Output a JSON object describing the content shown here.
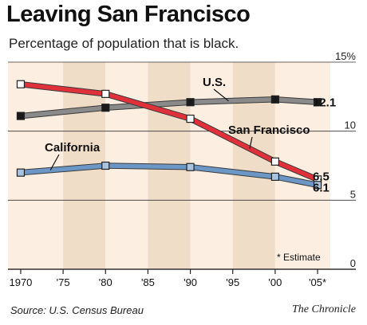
{
  "header": {
    "title": "Leaving San Francisco",
    "subtitle": "Percentage of population that is black."
  },
  "footer": {
    "source": "Source: U.S. Census Bureau",
    "credit": "The Chronicle"
  },
  "chart_data": {
    "type": "line",
    "x": [
      1970,
      1980,
      1990,
      2000,
      2005
    ],
    "x_ticks": [
      1970,
      1975,
      1980,
      1985,
      1990,
      1995,
      2000,
      2005
    ],
    "x_tick_labels": [
      "1970",
      "'75",
      "'80",
      "'85",
      "'90",
      "'95",
      "'00",
      "'05*"
    ],
    "y_ticks": [
      0,
      5,
      10,
      15
    ],
    "y_tick_labels": [
      "0",
      "5",
      "10",
      "15%"
    ],
    "ylim": [
      0,
      15
    ],
    "xlim": [
      1968.5,
      2006.5
    ],
    "grid": true,
    "annotation": "* Estimate",
    "series": [
      {
        "name": "U.S.",
        "values": [
          11.1,
          11.7,
          12.1,
          12.3,
          12.1
        ],
        "color": "#8a8a8a",
        "marker": "#1a1a1a",
        "end_label": "12.1"
      },
      {
        "name": "San Francisco",
        "values": [
          13.4,
          12.7,
          10.9,
          7.8,
          6.5
        ],
        "color": "#e0303a",
        "marker": "#ffffff",
        "end_label": "6.5"
      },
      {
        "name": "California",
        "values": [
          7.0,
          7.5,
          7.4,
          6.7,
          6.1
        ],
        "color": "#6b96c6",
        "marker": "#a8c4e0",
        "end_label": "6.1"
      }
    ],
    "colors": {
      "band_light": "#fdeee2",
      "band_dark": "#f0ddc8",
      "grid": "#333333"
    }
  }
}
